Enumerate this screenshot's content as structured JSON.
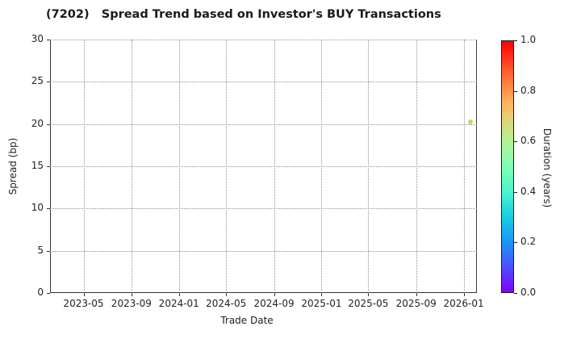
{
  "chart_data": {
    "type": "scatter",
    "title": "(7202)   Spread Trend based on Investor's BUY Transactions",
    "xlabel": "Trade Date",
    "ylabel": "Spread (bp)",
    "x_tick_labels": [
      "2023-05",
      "2023-09",
      "2024-01",
      "2024-05",
      "2024-09",
      "2025-01",
      "2025-05",
      "2025-09",
      "2026-01"
    ],
    "x_range": [
      "2023-02-04",
      "2026-02-04"
    ],
    "y_ticks": [
      0,
      5,
      10,
      15,
      20,
      25,
      30
    ],
    "ylim": [
      0,
      30
    ],
    "grid": "dotted both axes",
    "legend": "none",
    "points": [
      {
        "date": "2026-01-19",
        "spread_bp": 20.3,
        "duration_years": 0.67,
        "color": "#d4cf5f"
      }
    ],
    "colorbar": {
      "label": "Duration (years)",
      "ticks": [
        "0.0",
        "0.2",
        "0.4",
        "0.6",
        "0.8",
        "1.0"
      ],
      "min": 0.0,
      "max": 1.0,
      "colormap": "rainbow",
      "gradient": [
        {
          "pos": 0.0,
          "color": "#8000ff"
        },
        {
          "pos": 0.1,
          "color": "#4d4ffc"
        },
        {
          "pos": 0.2,
          "color": "#1a96f3"
        },
        {
          "pos": 0.3,
          "color": "#1acee3"
        },
        {
          "pos": 0.4,
          "color": "#4df3ce"
        },
        {
          "pos": 0.5,
          "color": "#80ffb4"
        },
        {
          "pos": 0.6,
          "color": "#b3f396"
        },
        {
          "pos": 0.7,
          "color": "#e6ce74"
        },
        {
          "pos": 0.75,
          "color": "#ffb462"
        },
        {
          "pos": 0.8,
          "color": "#ff964f"
        },
        {
          "pos": 0.9,
          "color": "#ff4f28"
        },
        {
          "pos": 1.0,
          "color": "#ff0000"
        }
      ]
    }
  }
}
